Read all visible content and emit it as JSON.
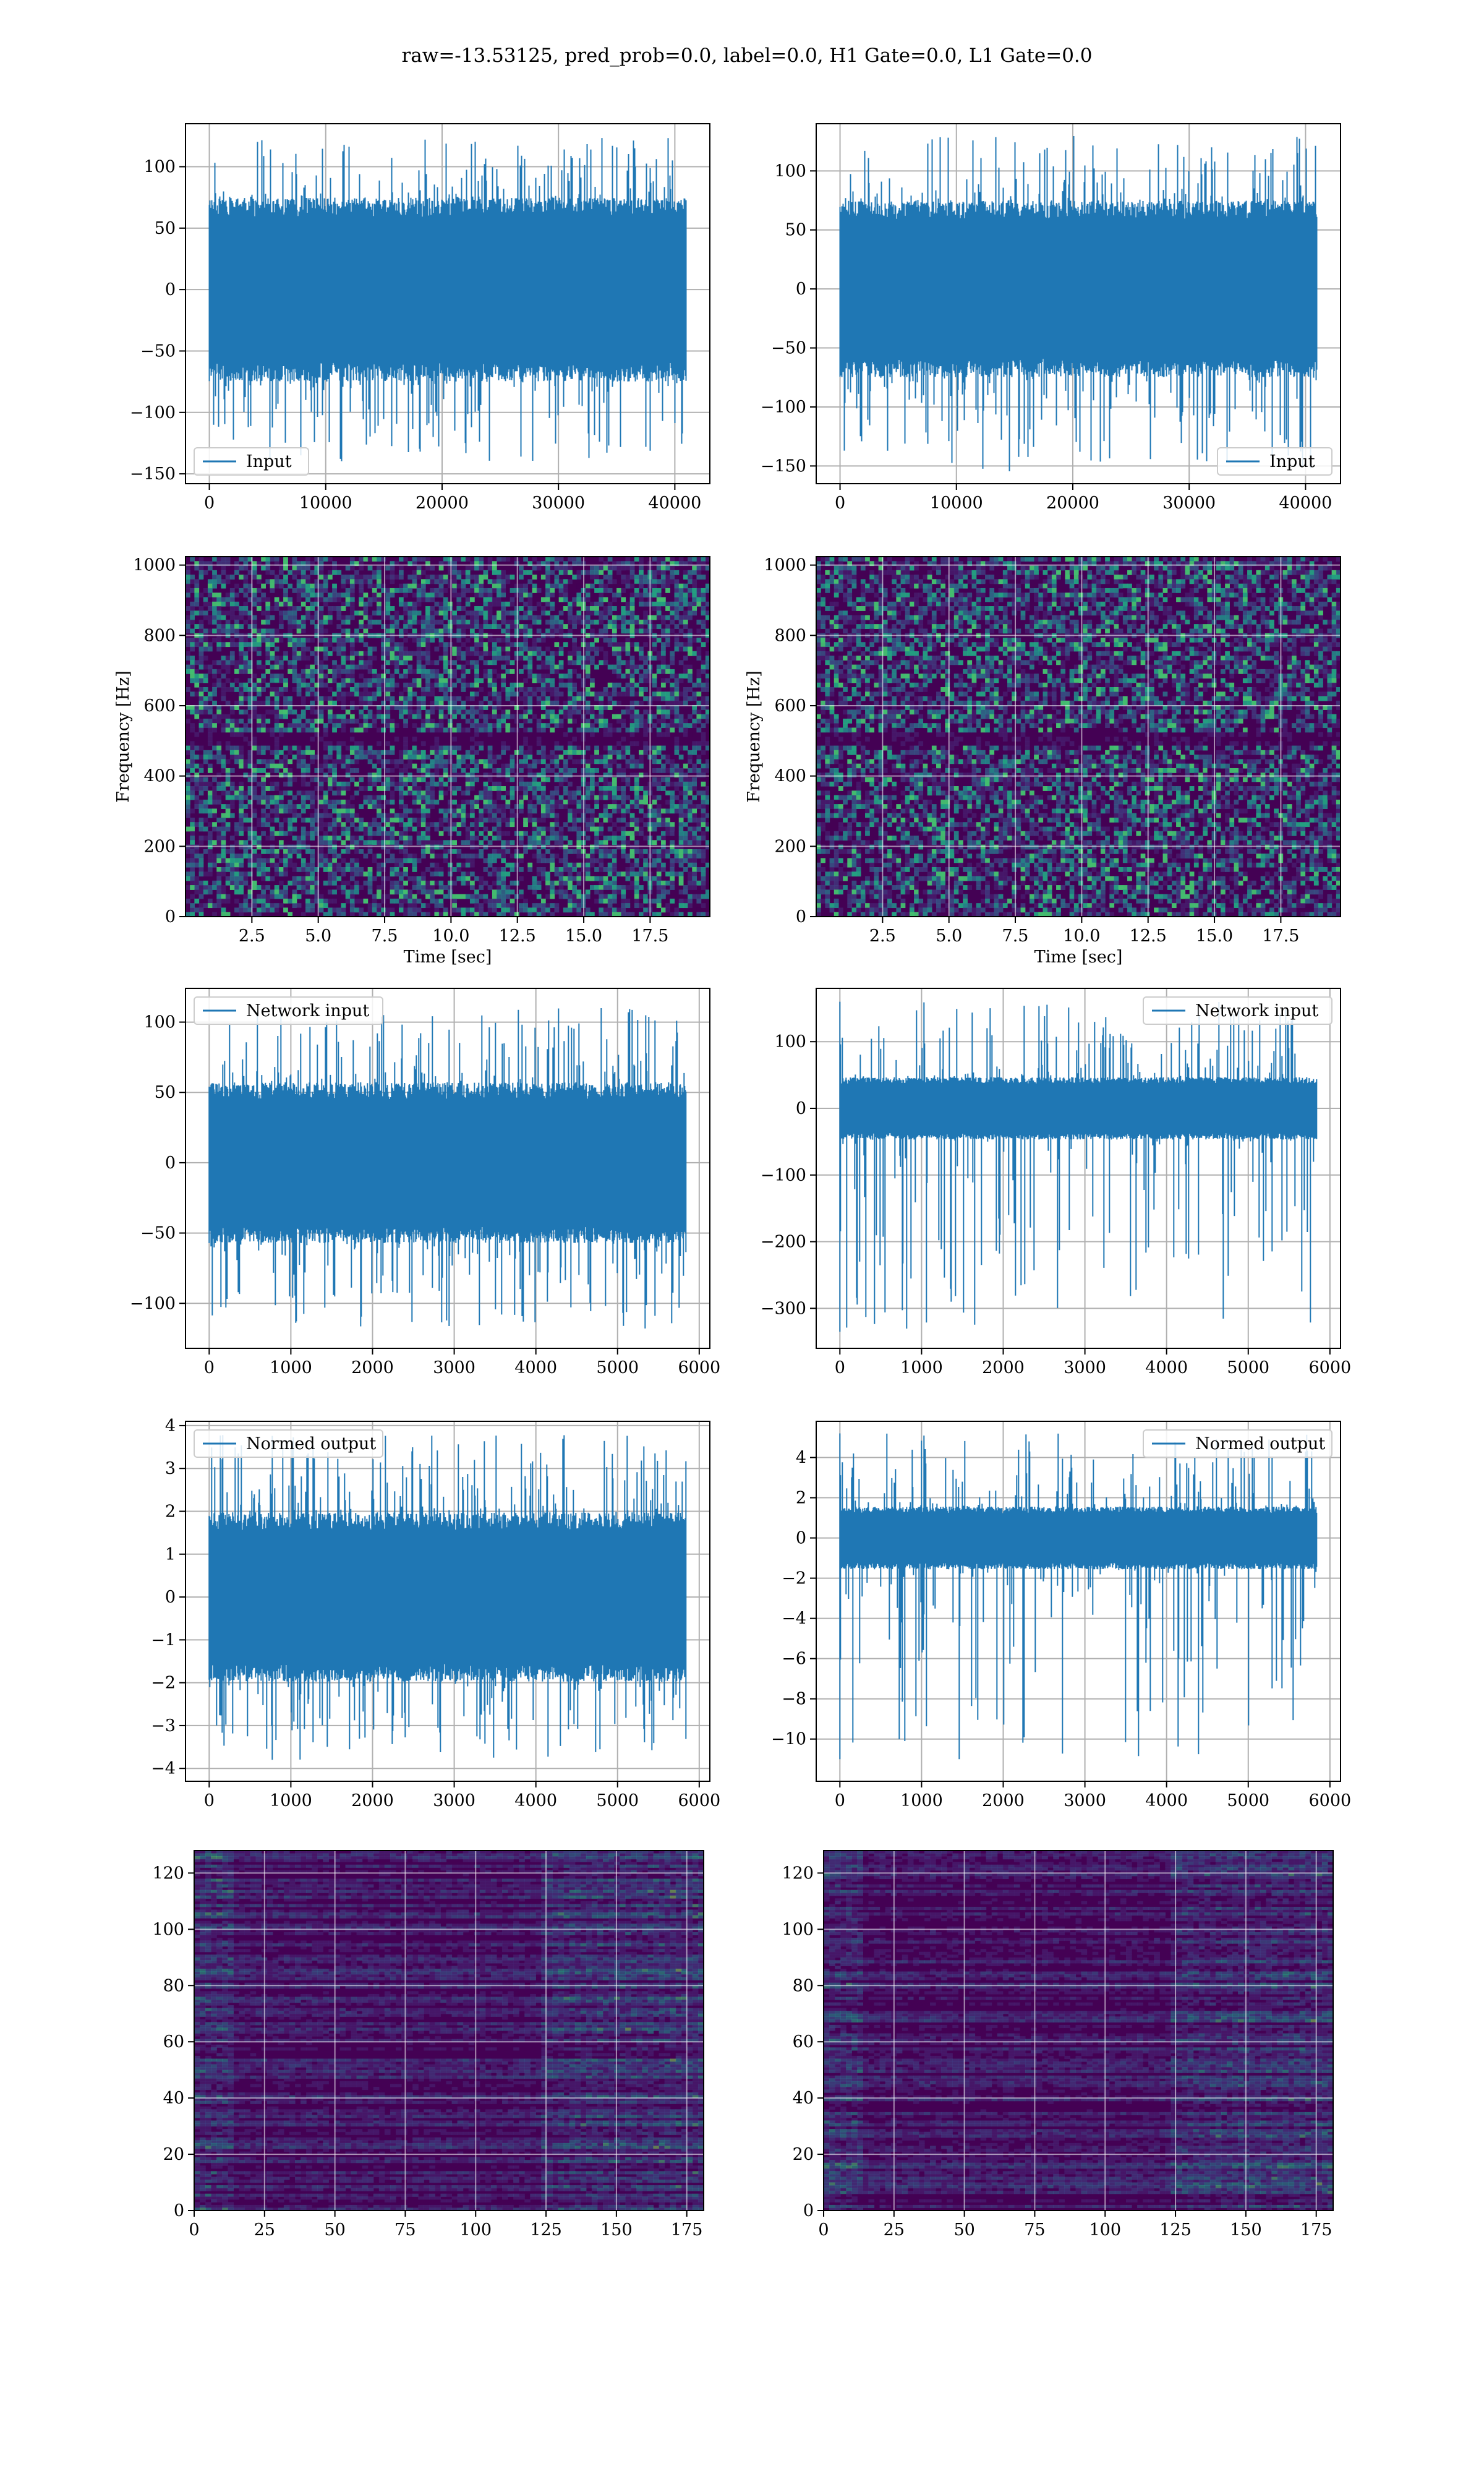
{
  "figure_title": "raw=-13.53125, pred_prob=0.0, label=0.0, H1 Gate=0.0, L1 Gate=0.0",
  "colors": {
    "line": "#1f77b4",
    "viridis_dark": "#440154",
    "viridis_mid": "#21918c",
    "viridis_bright": "#fde725",
    "grid": "#b0b0b0"
  },
  "chart_data": [
    {
      "id": "r1c1",
      "type": "line",
      "legend": "Input",
      "legend_loc": "lower left",
      "n": 40960,
      "xlim": [
        -2048,
        43008
      ],
      "ylim": [
        -158,
        135
      ],
      "xticks": [
        0,
        10000,
        20000,
        30000,
        40000
      ],
      "xticklabels": [
        "0",
        "10000",
        "20000",
        "30000",
        "40000"
      ],
      "yticks": [
        -150,
        -100,
        -50,
        0,
        50,
        100
      ],
      "yticklabels": [
        "−150",
        "−100",
        "−50",
        "0",
        "50",
        "100"
      ],
      "envelope": {
        "core": 72,
        "max": 124,
        "min": -142
      }
    },
    {
      "id": "r1c2",
      "type": "line",
      "legend": "Input",
      "legend_loc": "lower right",
      "n": 40960,
      "xlim": [
        -2048,
        43008
      ],
      "ylim": [
        -165,
        140
      ],
      "xticks": [
        0,
        10000,
        20000,
        30000,
        40000
      ],
      "xticklabels": [
        "0",
        "10000",
        "20000",
        "30000",
        "40000"
      ],
      "yticks": [
        -150,
        -100,
        -50,
        0,
        50,
        100
      ],
      "yticklabels": [
        "−150",
        "−100",
        "−50",
        "0",
        "50",
        "100"
      ],
      "envelope": {
        "core": 72,
        "max": 130,
        "min": -155
      }
    },
    {
      "id": "r2c1",
      "type": "heatmap",
      "xlabel": "Time [sec]",
      "ylabel": "Frequency [Hz]",
      "xlim": [
        0,
        19.75
      ],
      "ylim": [
        0,
        1024
      ],
      "xticks": [
        2.5,
        5.0,
        7.5,
        10.0,
        12.5,
        15.0,
        17.5
      ],
      "xticklabels": [
        "2.5",
        "5.0",
        "7.5",
        "10.0",
        "12.5",
        "15.0",
        "17.5"
      ],
      "yticks": [
        0,
        200,
        400,
        600,
        800,
        1000
      ],
      "yticklabels": [
        "0",
        "200",
        "400",
        "600",
        "800",
        "1000"
      ]
    },
    {
      "id": "r2c2",
      "type": "heatmap",
      "xlabel": "Time [sec]",
      "ylabel": "Frequency [Hz]",
      "xlim": [
        0,
        19.75
      ],
      "ylim": [
        0,
        1024
      ],
      "xticks": [
        2.5,
        5.0,
        7.5,
        10.0,
        12.5,
        15.0,
        17.5
      ],
      "xticklabels": [
        "2.5",
        "5.0",
        "7.5",
        "10.0",
        "12.5",
        "15.0",
        "17.5"
      ],
      "yticks": [
        0,
        200,
        400,
        600,
        800,
        1000
      ],
      "yticklabels": [
        "0",
        "200",
        "400",
        "600",
        "800",
        "1000"
      ]
    },
    {
      "id": "r3c1",
      "type": "line",
      "legend": "Network input",
      "legend_loc": "upper left",
      "n": 5840,
      "xlim": [
        -290,
        6130
      ],
      "ylim": [
        -132,
        124
      ],
      "xticks": [
        0,
        1000,
        2000,
        3000,
        4000,
        5000,
        6000
      ],
      "xticklabels": [
        "0",
        "1000",
        "2000",
        "3000",
        "4000",
        "5000",
        "6000"
      ],
      "yticks": [
        -100,
        -50,
        0,
        50,
        100
      ],
      "yticklabels": [
        "−100",
        "−50",
        "0",
        "50",
        "100"
      ],
      "envelope": {
        "core": 55,
        "max": 110,
        "min": -118
      }
    },
    {
      "id": "r3c2",
      "type": "line",
      "legend": "Network input",
      "legend_loc": "upper right",
      "n": 5840,
      "xlim": [
        -290,
        6130
      ],
      "ylim": [
        -360,
        180
      ],
      "xticks": [
        0,
        1000,
        2000,
        3000,
        4000,
        5000,
        6000
      ],
      "xticklabels": [
        "0",
        "1000",
        "2000",
        "3000",
        "4000",
        "5000",
        "6000"
      ],
      "yticks": [
        -300,
        -200,
        -100,
        0,
        100
      ],
      "yticklabels": [
        "−300",
        "−200",
        "−100",
        "0",
        "100"
      ],
      "envelope": {
        "core": 45,
        "max": 160,
        "min": -335
      }
    },
    {
      "id": "r4c1",
      "type": "line",
      "legend": "Normed output",
      "legend_loc": "upper left",
      "n": 5840,
      "xlim": [
        -290,
        6130
      ],
      "ylim": [
        -4.3,
        4.1
      ],
      "xticks": [
        0,
        1000,
        2000,
        3000,
        4000,
        5000,
        6000
      ],
      "xticklabels": [
        "0",
        "1000",
        "2000",
        "3000",
        "4000",
        "5000",
        "6000"
      ],
      "yticks": [
        -4,
        -3,
        -2,
        -1,
        0,
        1,
        2,
        3,
        4
      ],
      "yticklabels": [
        "−4",
        "−3",
        "−2",
        "−1",
        "0",
        "1",
        "2",
        "3",
        "4"
      ],
      "envelope": {
        "core": 1.9,
        "max": 3.8,
        "min": -3.8
      }
    },
    {
      "id": "r4c2",
      "type": "line",
      "legend": "Normed output",
      "legend_loc": "upper right",
      "n": 5840,
      "xlim": [
        -290,
        6130
      ],
      "ylim": [
        -12.1,
        5.8
      ],
      "xticks": [
        0,
        1000,
        2000,
        3000,
        4000,
        5000,
        6000
      ],
      "xticklabels": [
        "0",
        "1000",
        "2000",
        "3000",
        "4000",
        "5000",
        "6000"
      ],
      "yticks": [
        -10,
        -8,
        -6,
        -4,
        -2,
        0,
        2,
        4
      ],
      "yticklabels": [
        "−10",
        "−8",
        "−6",
        "−4",
        "−2",
        "0",
        "2",
        "4"
      ],
      "envelope": {
        "core": 1.5,
        "max": 5.2,
        "min": -11
      }
    },
    {
      "id": "r5c1",
      "type": "heatmap",
      "xlim": [
        0,
        181
      ],
      "ylim": [
        128,
        0
      ],
      "xticks": [
        0,
        25,
        50,
        75,
        100,
        125,
        150,
        175
      ],
      "xticklabels": [
        "0",
        "25",
        "50",
        "75",
        "100",
        "125",
        "150",
        "175"
      ],
      "yticks": [
        0,
        20,
        40,
        60,
        80,
        100,
        120
      ],
      "yticklabels": [
        "0",
        "20",
        "40",
        "60",
        "80",
        "100",
        "120"
      ]
    },
    {
      "id": "r5c2",
      "type": "heatmap",
      "xlim": [
        0,
        181
      ],
      "ylim": [
        128,
        0
      ],
      "xticks": [
        0,
        25,
        50,
        75,
        100,
        125,
        150,
        175
      ],
      "xticklabels": [
        "0",
        "25",
        "50",
        "75",
        "100",
        "125",
        "150",
        "175"
      ],
      "yticks": [
        0,
        20,
        40,
        60,
        80,
        100,
        120
      ],
      "yticklabels": [
        "0",
        "20",
        "40",
        "60",
        "80",
        "100",
        "120"
      ]
    }
  ]
}
